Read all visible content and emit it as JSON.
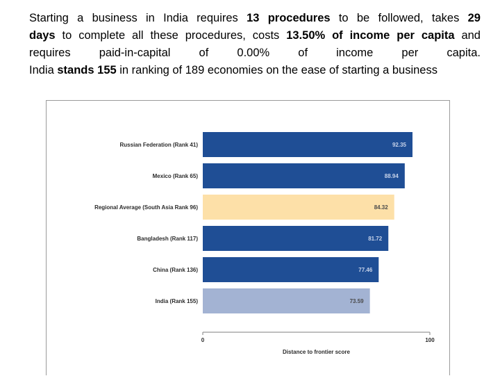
{
  "intro": {
    "l1_a": "Starting a business in India requires ",
    "l1_b": "13 procedures",
    "l1_c": " to be followed, takes ",
    "l1_d": "29",
    "l2_a": "days",
    "l2_b": " to complete all these procedures, costs ",
    "l2_c": "13.50% of income per capita",
    "l2_d": " and",
    "l3_a": "requires paid-in-capital of 0.00% of income per capita.",
    "l4_a": "India ",
    "l4_b": "stands 155",
    "l4_c": " in ranking of 189 economies on the ease of starting a business"
  },
  "colors": {
    "bar_default": "#1f4e95",
    "bar_regional": "#fde0a8",
    "bar_india": "#a3b3d3",
    "value_text_dark_bar": "#c9d4ea",
    "value_text_light_bar": "#4a4a4a"
  },
  "chart_data": {
    "type": "bar",
    "orientation": "horizontal",
    "categories": [
      "Russian Federation (Rank 41)",
      "Mexico (Rank 65)",
      "Regional Average (South Asia Rank 96)",
      "Bangladesh (Rank 117)",
      "China (Rank 136)",
      "India (Rank 155)"
    ],
    "values": [
      92.35,
      88.94,
      84.32,
      81.72,
      77.46,
      73.59
    ],
    "value_labels": [
      "92.35",
      "88.94",
      "84.32",
      "81.72",
      "77.46",
      "73.59"
    ],
    "bar_styles": [
      "default",
      "default",
      "regional",
      "default",
      "default",
      "india"
    ],
    "xlabel": "Distance to frontier score",
    "xlim": [
      0,
      100
    ],
    "ticks": [
      "0",
      "100"
    ],
    "tick_values": [
      0,
      100
    ],
    "grid": false
  }
}
